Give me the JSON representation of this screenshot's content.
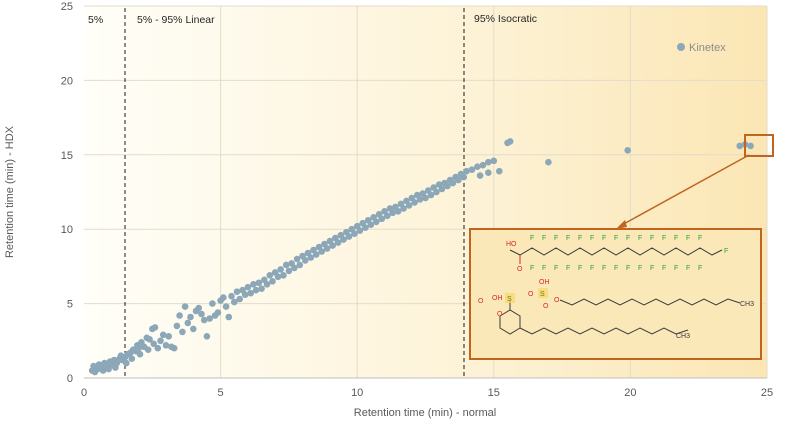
{
  "chart_data": {
    "type": "scatter",
    "xlabel": "Retention time (min) - normal",
    "ylabel": "Retention time (min) - HDX",
    "xlim": [
      0,
      25
    ],
    "ylim": [
      0,
      25
    ],
    "x_ticks": [
      "0",
      "5",
      "10",
      "15",
      "20",
      "25"
    ],
    "y_ticks": [
      "0",
      "5",
      "10",
      "15",
      "20",
      "25"
    ],
    "grid": true,
    "legend_position": "top-right",
    "series": [
      {
        "name": "Kinetex",
        "color": "#8ba7b8",
        "points": [
          [
            0.3,
            0.5
          ],
          [
            0.35,
            0.8
          ],
          [
            0.4,
            0.4
          ],
          [
            0.5,
            0.6
          ],
          [
            0.55,
            0.9
          ],
          [
            0.6,
            0.7
          ],
          [
            0.7,
            0.5
          ],
          [
            0.75,
            1.0
          ],
          [
            0.8,
            0.8
          ],
          [
            0.9,
            0.6
          ],
          [
            0.95,
            1.1
          ],
          [
            1.0,
            0.9
          ],
          [
            1.1,
            1.2
          ],
          [
            1.15,
            0.7
          ],
          [
            1.2,
            1.0
          ],
          [
            1.3,
            1.3
          ],
          [
            1.35,
            1.5
          ],
          [
            1.4,
            1.2
          ],
          [
            1.5,
            1.4
          ],
          [
            1.55,
            1.0
          ],
          [
            1.6,
            1.6
          ],
          [
            1.7,
            1.7
          ],
          [
            1.75,
            1.3
          ],
          [
            1.8,
            1.9
          ],
          [
            1.9,
            1.8
          ],
          [
            1.95,
            2.2
          ],
          [
            2.0,
            2.0
          ],
          [
            2.05,
            1.6
          ],
          [
            2.1,
            2.4
          ],
          [
            2.2,
            2.1
          ],
          [
            2.3,
            2.7
          ],
          [
            2.35,
            1.9
          ],
          [
            2.4,
            2.6
          ],
          [
            2.5,
            3.3
          ],
          [
            2.55,
            2.3
          ],
          [
            2.6,
            3.4
          ],
          [
            2.7,
            2.0
          ],
          [
            2.8,
            2.5
          ],
          [
            2.9,
            2.9
          ],
          [
            3.0,
            2.2
          ],
          [
            3.1,
            2.8
          ],
          [
            3.2,
            2.1
          ],
          [
            3.3,
            2.0
          ],
          [
            3.4,
            3.5
          ],
          [
            3.5,
            4.2
          ],
          [
            3.6,
            3.1
          ],
          [
            3.7,
            4.8
          ],
          [
            3.8,
            3.7
          ],
          [
            3.9,
            4.1
          ],
          [
            4.0,
            3.3
          ],
          [
            4.1,
            4.5
          ],
          [
            4.2,
            4.7
          ],
          [
            4.3,
            4.3
          ],
          [
            4.4,
            3.9
          ],
          [
            4.5,
            2.8
          ],
          [
            4.6,
            4.0
          ],
          [
            4.7,
            5.0
          ],
          [
            4.8,
            4.2
          ],
          [
            4.9,
            4.4
          ],
          [
            5.0,
            5.2
          ],
          [
            5.1,
            5.4
          ],
          [
            5.2,
            4.8
          ],
          [
            5.3,
            4.1
          ],
          [
            5.4,
            5.5
          ],
          [
            5.5,
            5.1
          ],
          [
            5.6,
            5.8
          ],
          [
            5.7,
            5.3
          ],
          [
            5.8,
            5.9
          ],
          [
            5.9,
            5.6
          ],
          [
            6.0,
            6.1
          ],
          [
            6.1,
            5.7
          ],
          [
            6.2,
            6.3
          ],
          [
            6.3,
            5.9
          ],
          [
            6.4,
            6.4
          ],
          [
            6.5,
            6.0
          ],
          [
            6.6,
            6.6
          ],
          [
            6.7,
            6.3
          ],
          [
            6.8,
            6.9
          ],
          [
            6.9,
            6.5
          ],
          [
            7.0,
            7.1
          ],
          [
            7.1,
            6.8
          ],
          [
            7.2,
            7.3
          ],
          [
            7.3,
            6.9
          ],
          [
            7.4,
            7.6
          ],
          [
            7.5,
            7.2
          ],
          [
            7.6,
            7.7
          ],
          [
            7.7,
            7.4
          ],
          [
            7.8,
            8.0
          ],
          [
            7.9,
            7.6
          ],
          [
            8.0,
            8.2
          ],
          [
            8.1,
            7.9
          ],
          [
            8.2,
            8.4
          ],
          [
            8.3,
            8.1
          ],
          [
            8.4,
            8.6
          ],
          [
            8.5,
            8.3
          ],
          [
            8.6,
            8.8
          ],
          [
            8.7,
            8.5
          ],
          [
            8.8,
            9.0
          ],
          [
            8.9,
            8.7
          ],
          [
            9.0,
            9.2
          ],
          [
            9.1,
            8.9
          ],
          [
            9.2,
            9.4
          ],
          [
            9.3,
            9.1
          ],
          [
            9.4,
            9.6
          ],
          [
            9.5,
            9.3
          ],
          [
            9.6,
            9.8
          ],
          [
            9.7,
            9.5
          ],
          [
            9.8,
            10.0
          ],
          [
            9.9,
            9.7
          ],
          [
            10.0,
            10.2
          ],
          [
            10.1,
            9.9
          ],
          [
            10.2,
            10.4
          ],
          [
            10.3,
            10.1
          ],
          [
            10.4,
            10.6
          ],
          [
            10.5,
            10.3
          ],
          [
            10.6,
            10.8
          ],
          [
            10.7,
            10.5
          ],
          [
            10.8,
            11.0
          ],
          [
            10.9,
            10.7
          ],
          [
            11.0,
            11.2
          ],
          [
            11.1,
            10.9
          ],
          [
            11.2,
            11.4
          ],
          [
            11.3,
            11.1
          ],
          [
            11.4,
            11.5
          ],
          [
            11.5,
            11.2
          ],
          [
            11.6,
            11.7
          ],
          [
            11.7,
            11.4
          ],
          [
            11.8,
            11.9
          ],
          [
            11.9,
            11.6
          ],
          [
            12.0,
            12.1
          ],
          [
            12.1,
            11.8
          ],
          [
            12.2,
            12.3
          ],
          [
            12.3,
            12.0
          ],
          [
            12.4,
            12.4
          ],
          [
            12.5,
            12.1
          ],
          [
            12.6,
            12.6
          ],
          [
            12.7,
            12.3
          ],
          [
            12.8,
            12.8
          ],
          [
            12.9,
            12.5
          ],
          [
            13.0,
            13.0
          ],
          [
            13.1,
            12.7
          ],
          [
            13.2,
            13.1
          ],
          [
            13.3,
            12.9
          ],
          [
            13.4,
            13.3
          ],
          [
            13.5,
            13.1
          ],
          [
            13.6,
            13.5
          ],
          [
            13.7,
            13.3
          ],
          [
            13.8,
            13.7
          ],
          [
            13.9,
            13.5
          ],
          [
            14.0,
            13.9
          ],
          [
            14.2,
            14.0
          ],
          [
            14.4,
            14.2
          ],
          [
            14.6,
            14.3
          ],
          [
            14.8,
            14.5
          ],
          [
            15.0,
            14.6
          ],
          [
            14.5,
            13.6
          ],
          [
            14.8,
            13.8
          ],
          [
            15.2,
            13.9
          ],
          [
            15.5,
            15.8
          ],
          [
            15.6,
            15.9
          ],
          [
            17.0,
            14.5
          ],
          [
            19.9,
            15.3
          ],
          [
            24.0,
            15.6
          ],
          [
            24.2,
            15.7
          ],
          [
            24.4,
            15.6
          ]
        ]
      }
    ],
    "regions": [
      {
        "label": "5%",
        "x_start": 0,
        "x_end": 1.5
      },
      {
        "label": "5% - 95% Linear",
        "x_start": 1.5,
        "x_end": 13.6
      },
      {
        "label": "95% Isocratic",
        "x_start": 13.6,
        "x_end": 24.5
      }
    ],
    "inset": {
      "molecule_1": {
        "acid_labels": [
          "HO",
          "O"
        ],
        "fluorine_label": "F"
      },
      "molecule_2": {
        "labels": [
          "O",
          "OH",
          "S",
          "O",
          "OH",
          "S",
          "O",
          "O",
          "CH3"
        ]
      },
      "molecule_3": {
        "labels": [
          "O",
          "S",
          "O",
          "OH",
          "CH3"
        ]
      }
    },
    "colors": {
      "marker": "#8ba7b8",
      "highlight_box": "#c0641e",
      "background_start": "#fffdf5",
      "background_end": "#fbe8b8"
    }
  }
}
